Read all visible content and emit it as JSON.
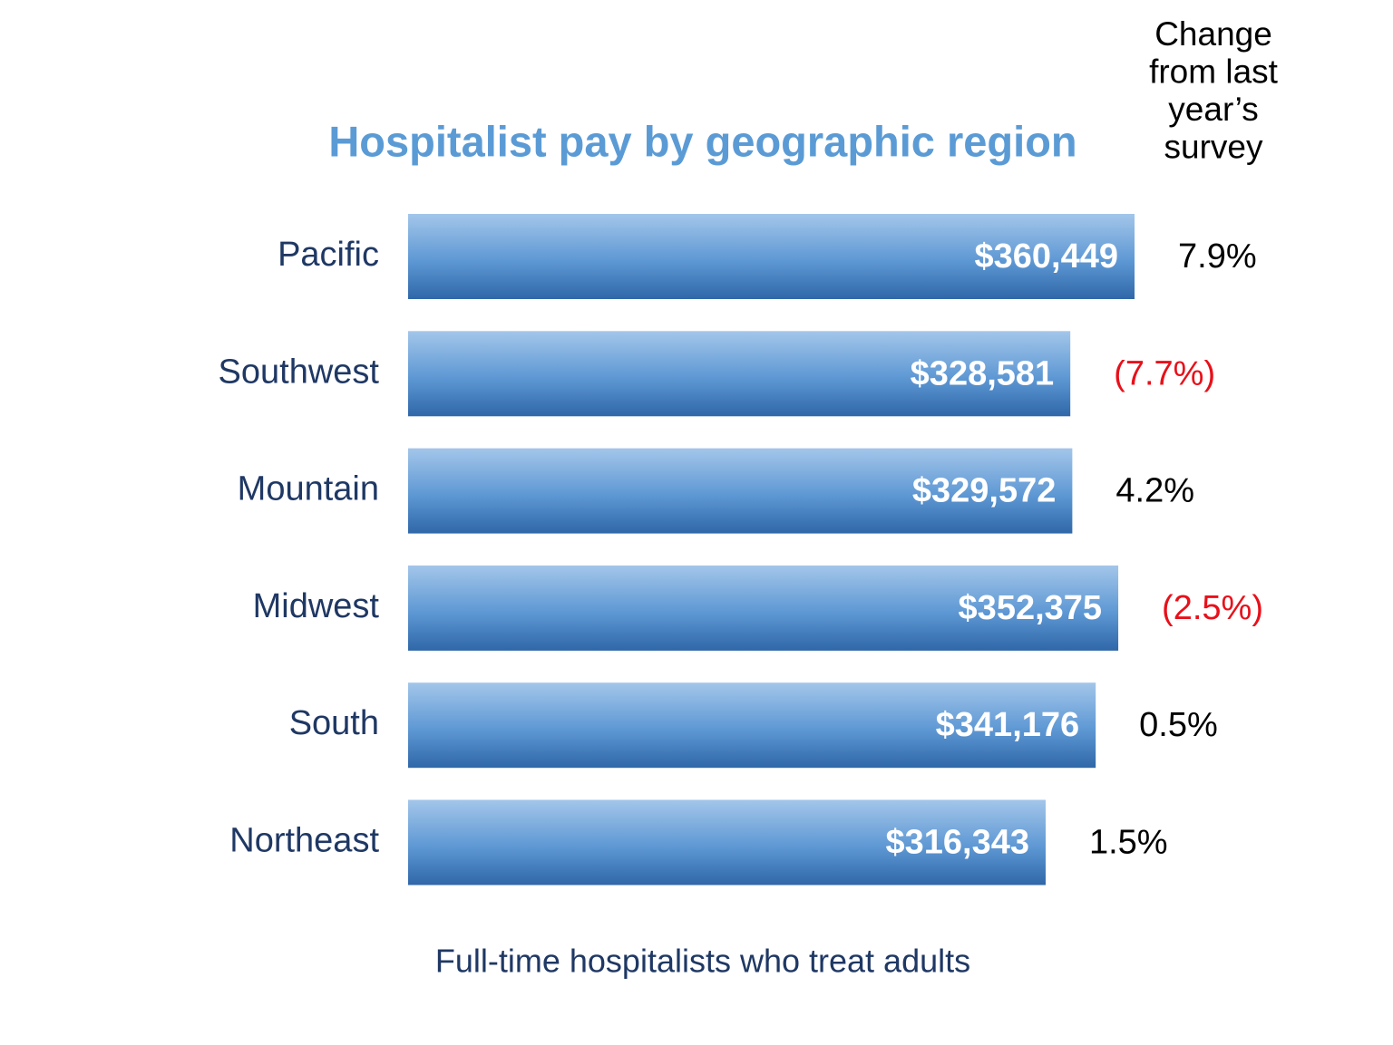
{
  "chart_data": {
    "type": "bar",
    "orientation": "horizontal",
    "title": "Hospitalist pay by geographic region",
    "subtitle": "Full-time hospitalists who treat adults",
    "categories": [
      "Pacific",
      "Southwest",
      "Mountain",
      "Midwest",
      "South",
      "Northeast"
    ],
    "values": [
      360449,
      328581,
      329572,
      352375,
      341176,
      316343
    ],
    "value_labels": [
      "$360,449",
      "$328,581",
      "$329,572",
      "$352,375",
      "$341,176",
      "$316,343"
    ],
    "color": "#4a86c8",
    "change": {
      "header_lines": [
        "Change",
        "from last",
        "year’s",
        "survey"
      ],
      "values": [
        7.9,
        -7.7,
        4.2,
        -2.5,
        0.5,
        1.5
      ],
      "value_labels": [
        "7.9%",
        "(7.7%)",
        "4.2%",
        "(2.5%)",
        "0.5%",
        "1.5%"
      ],
      "color": "#000000",
      "negative_color": "#e8101a"
    }
  }
}
